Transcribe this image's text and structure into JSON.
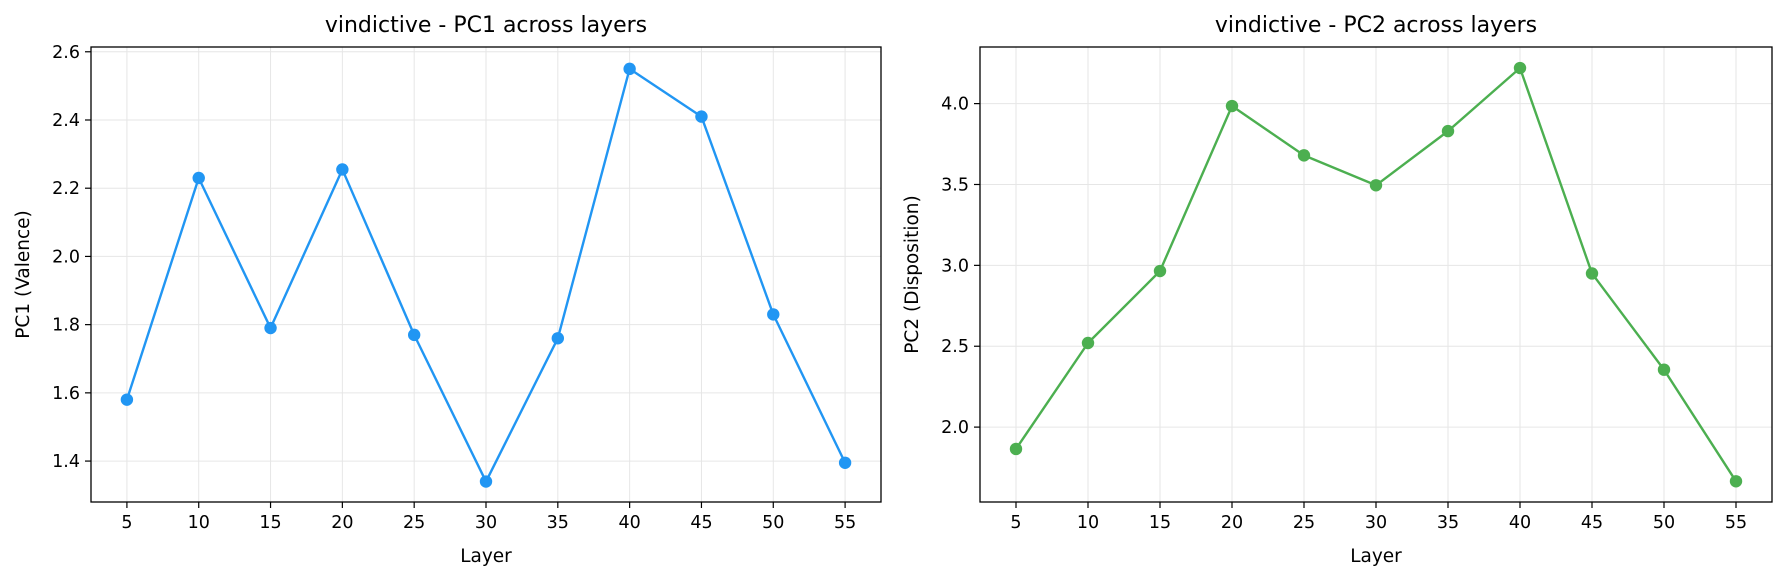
{
  "chart_data": [
    {
      "type": "line",
      "title": "vindictive - PC1 across layers",
      "xlabel": "Layer",
      "ylabel": "PC1 (Valence)",
      "x": [
        5,
        10,
        15,
        20,
        25,
        30,
        35,
        40,
        45,
        50,
        55
      ],
      "xticks": [
        5,
        10,
        15,
        20,
        25,
        30,
        35,
        40,
        45,
        50,
        55
      ],
      "xlim": [
        2.5,
        57.5
      ],
      "yticks": [
        1.4,
        1.6,
        1.8,
        2.0,
        2.2,
        2.4,
        2.6
      ],
      "ytick_labels": [
        "1.4",
        "1.6",
        "1.8",
        "2.0",
        "2.2",
        "2.4",
        "2.6"
      ],
      "ylim": [
        1.28,
        2.614
      ],
      "grid": true,
      "series": [
        {
          "values": [
            1.58,
            2.23,
            1.79,
            2.255,
            1.77,
            1.34,
            1.76,
            2.55,
            2.41,
            1.83,
            1.395
          ],
          "color": "#2196f3",
          "marker": "circle"
        }
      ]
    },
    {
      "type": "line",
      "title": "vindictive - PC2 across layers",
      "xlabel": "Layer",
      "ylabel": "PC2 (Disposition)",
      "x": [
        5,
        10,
        15,
        20,
        25,
        30,
        35,
        40,
        45,
        50,
        55
      ],
      "xticks": [
        5,
        10,
        15,
        20,
        25,
        30,
        35,
        40,
        45,
        50,
        55
      ],
      "xlim": [
        2.5,
        57.5
      ],
      "yticks": [
        2.0,
        2.5,
        3.0,
        3.5,
        4.0
      ],
      "ytick_labels": [
        "2.0",
        "2.5",
        "3.0",
        "3.5",
        "4.0"
      ],
      "ylim": [
        1.537,
        4.35
      ],
      "grid": true,
      "series": [
        {
          "values": [
            1.865,
            2.52,
            2.965,
            3.985,
            3.68,
            3.495,
            3.83,
            4.22,
            2.95,
            2.355,
            1.665
          ],
          "color": "#4caf50",
          "marker": "circle"
        }
      ]
    }
  ]
}
